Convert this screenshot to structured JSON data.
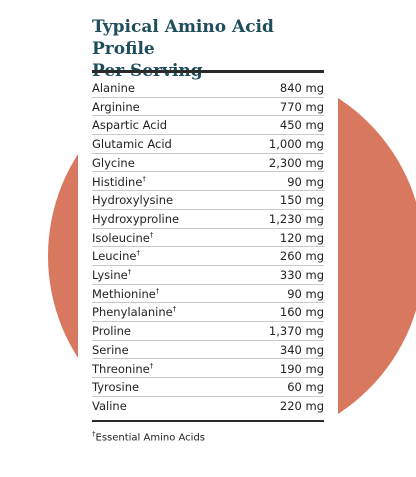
{
  "card": {
    "title_lines": [
      "Typical Amino Acid Profile",
      "Per Serving"
    ],
    "rows": [
      {
        "name": "Alanine",
        "amount": "840 mg"
      },
      {
        "name": "Arginine",
        "amount": "770 mg"
      },
      {
        "name": "Aspartic Acid",
        "amount": "450 mg"
      },
      {
        "name": "Glutamic Acid",
        "amount": "1,000 mg"
      },
      {
        "name": "Glycine",
        "amount": "2,300 mg"
      },
      {
        "name": "Histidine",
        "mark": "†",
        "amount": "90 mg"
      },
      {
        "name": "Hydroxylysine",
        "amount": "150 mg"
      },
      {
        "name": "Hydroxyproline",
        "amount": "1,230 mg"
      },
      {
        "name": "Isoleucine",
        "mark": "†",
        "amount": "120 mg"
      },
      {
        "name": "Leucine",
        "mark": "†",
        "amount": "260 mg"
      },
      {
        "name": "Lysine",
        "mark": "†",
        "amount": "330 mg"
      },
      {
        "name": "Methionine",
        "mark": "†",
        "amount": "90 mg"
      },
      {
        "name": "Phenylalanine",
        "mark": "†",
        "amount": "160 mg"
      },
      {
        "name": "Proline",
        "amount": "1,370 mg"
      },
      {
        "name": "Serine",
        "amount": "340 mg"
      },
      {
        "name": "Threonine",
        "mark": "†",
        "amount": "190 mg"
      },
      {
        "name": "Tyrosine",
        "amount": "60 mg"
      },
      {
        "name": "Valine",
        "amount": "220 mg"
      }
    ],
    "footnote": {
      "mark": "†",
      "text": "Essential Amino Acids"
    }
  }
}
